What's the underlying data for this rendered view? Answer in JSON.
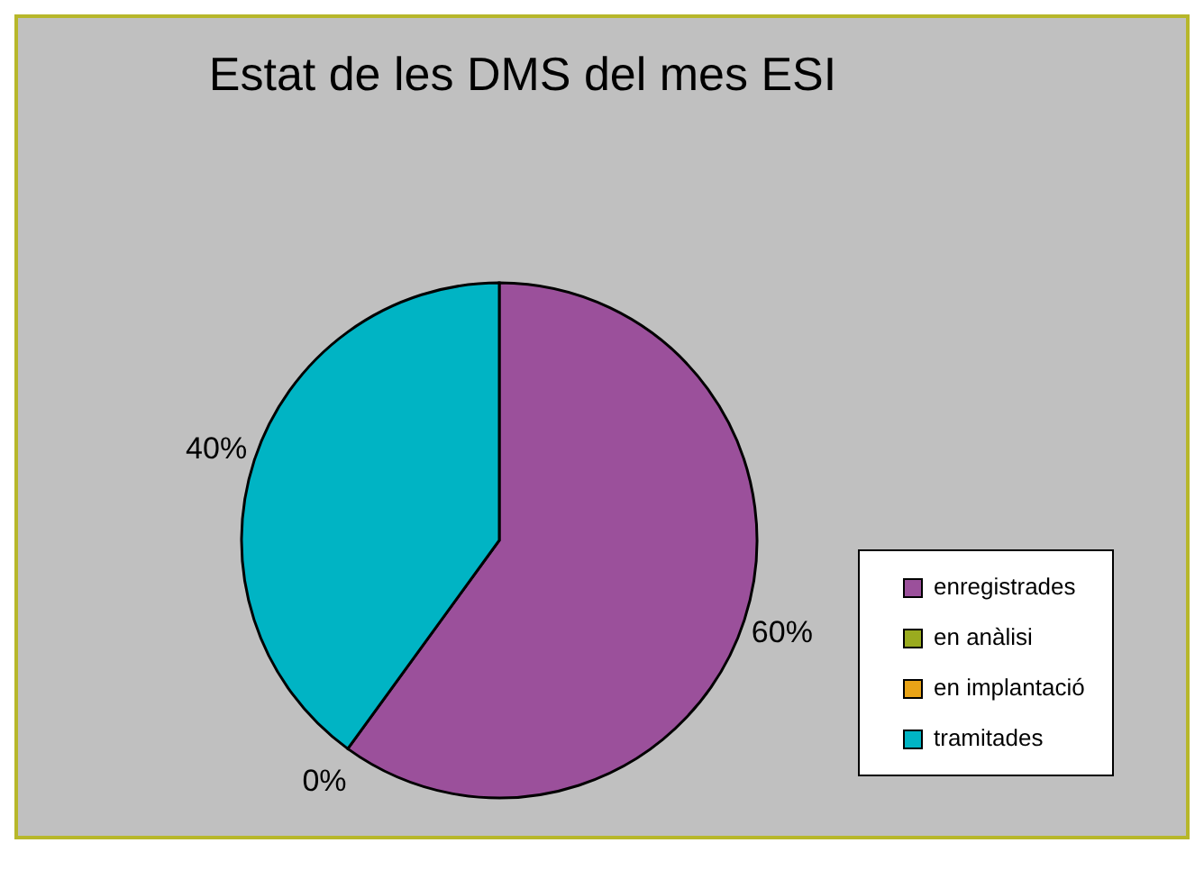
{
  "chart_data": {
    "type": "pie",
    "title": "Estat de les DMS del mes ESI",
    "categories": [
      "enregistrades",
      "en anàlisi",
      "en implantació",
      "tramitades"
    ],
    "values": [
      60,
      0,
      0,
      40
    ],
    "colors": [
      "#9b509b",
      "#9aab1f",
      "#e8a317",
      "#00b4c4"
    ],
    "value_labels": [
      "60%",
      null,
      "0%",
      "40%"
    ],
    "legend": "right"
  }
}
